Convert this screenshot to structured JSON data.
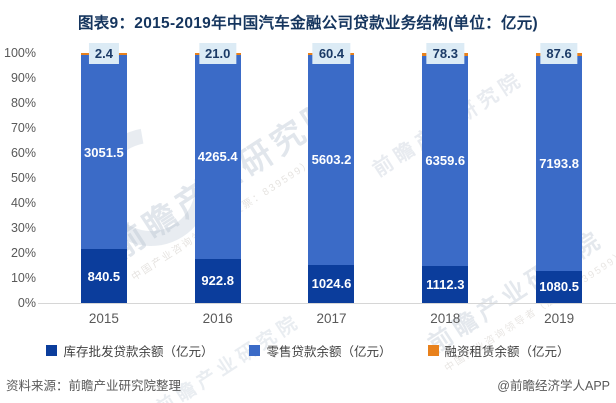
{
  "title": "图表9：2015-2019年中国汽车金融公司贷款业务结构(单位：亿元)",
  "colors": {
    "wholesale": "#0b3d9c",
    "retail": "#3b6bc7",
    "leasing": "#e8811c",
    "callout_bg": "#dcebf5",
    "callout_text": "#1b3a66",
    "axis_text": "#595959",
    "title_text": "#15355e"
  },
  "chart_data": {
    "type": "bar",
    "variant": "stacked-100-percent",
    "title": "图表9：2015-2019年中国汽车金融公司贷款业务结构(单位：亿元)",
    "categories": [
      "2015",
      "2016",
      "2017",
      "2018",
      "2019"
    ],
    "series": [
      {
        "name": "库存批发贷款余额（亿元）",
        "color": "#0b3d9c",
        "values": [
          840.5,
          922.8,
          1024.6,
          1112.3,
          1080.5
        ],
        "labels": [
          "840.5",
          "922.8",
          "1024.6",
          "1112.3",
          "1080.5"
        ]
      },
      {
        "name": "零售贷款余额（亿元）",
        "color": "#3b6bc7",
        "values": [
          3051.5,
          4265.4,
          5603.2,
          6359.6,
          7193.8
        ],
        "labels": [
          "3051.5",
          "4265.4",
          "5603.2",
          "6359.6",
          "7193.8"
        ]
      },
      {
        "name": "融资租赁余额（亿元）",
        "color": "#e8811c",
        "values": [
          2.4,
          21.0,
          60.4,
          78.3,
          87.6
        ],
        "labels": [
          "2.4",
          "21.0",
          "60.4",
          "78.3",
          "87.6"
        ]
      }
    ],
    "y_axis": {
      "min": 0,
      "max": 100,
      "ticks": [
        "0%",
        "10%",
        "20%",
        "30%",
        "40%",
        "50%",
        "60%",
        "70%",
        "80%",
        "90%",
        "100%"
      ]
    },
    "grid": false,
    "legend_position": "bottom"
  },
  "watermark": {
    "text": "前瞻产业研究院",
    "subtext": "中国产业咨询领导者（股票：839599）"
  },
  "footer": {
    "source": "资料来源：前瞻产业研究院整理",
    "credit": "@前瞻经济学人APP"
  }
}
